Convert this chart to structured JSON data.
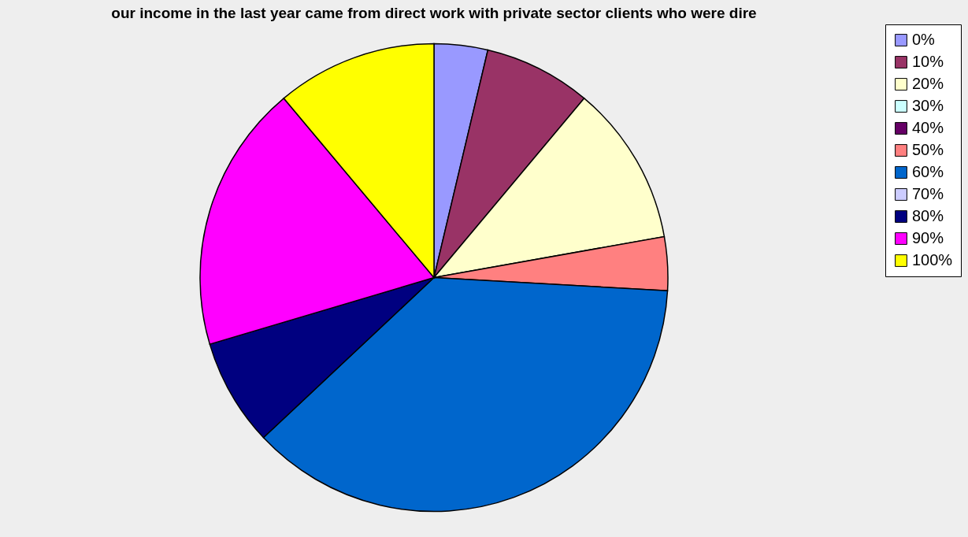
{
  "chart_data": {
    "type": "pie",
    "title": "our income in the last year came from direct work with private sector clients who were dire",
    "categories": [
      "0%",
      "10%",
      "20%",
      "30%",
      "40%",
      "50%",
      "60%",
      "70%",
      "80%",
      "90%",
      "100%"
    ],
    "values": [
      3.7,
      7.4,
      11.1,
      0,
      0,
      3.7,
      37.1,
      0,
      7.4,
      18.5,
      11.1
    ],
    "colors": [
      "#9999ff",
      "#993366",
      "#ffffcc",
      "#ccffff",
      "#660066",
      "#ff8080",
      "#0066cc",
      "#ccccff",
      "#000080",
      "#ff00ff",
      "#ffff00"
    ],
    "legend": "right"
  }
}
